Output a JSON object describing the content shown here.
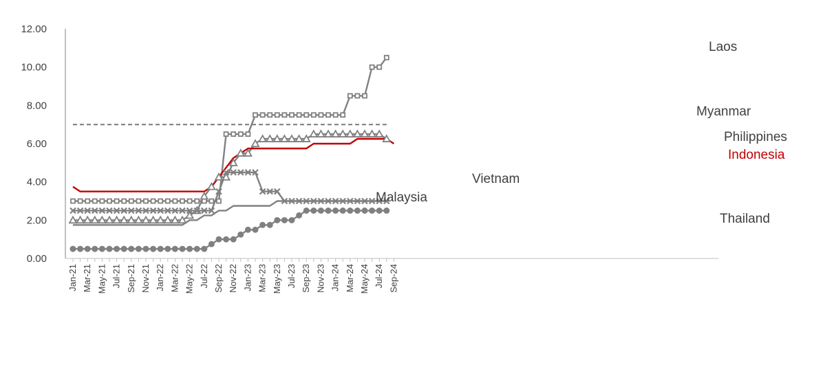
{
  "chart_data": {
    "type": "line",
    "title": "",
    "xlabel": "",
    "ylabel": "",
    "ylim": [
      0,
      12
    ],
    "yticks": [
      "0.00",
      "2.00",
      "4.00",
      "6.00",
      "8.00",
      "10.00",
      "12.00"
    ],
    "x_tick_labels": [
      "Jan-21",
      "Mar-21",
      "May-21",
      "Jul-21",
      "Sep-21",
      "Nov-21",
      "Jan-22",
      "Mar-22",
      "May-22",
      "Jul-22",
      "Sep-22",
      "Nov-22",
      "Jan-23",
      "Mar-23",
      "May-23",
      "Jul-23",
      "Sep-23",
      "Nov-23",
      "Jan-24",
      "Mar-24",
      "May-24",
      "Jul-24",
      "Sep-24"
    ],
    "x": [
      "Jan-21",
      "Feb-21",
      "Mar-21",
      "Apr-21",
      "May-21",
      "Jun-21",
      "Jul-21",
      "Aug-21",
      "Sep-21",
      "Oct-21",
      "Nov-21",
      "Dec-21",
      "Jan-22",
      "Feb-22",
      "Mar-22",
      "Apr-22",
      "May-22",
      "Jun-22",
      "Jul-22",
      "Aug-22",
      "Sep-22",
      "Oct-22",
      "Nov-22",
      "Dec-22",
      "Jan-23",
      "Feb-23",
      "Mar-23",
      "Apr-23",
      "May-23",
      "Jun-23",
      "Jul-23",
      "Aug-23",
      "Sep-23",
      "Oct-23",
      "Nov-23",
      "Dec-23",
      "Jan-24",
      "Feb-24",
      "Mar-24",
      "Apr-24",
      "May-24",
      "Jun-24",
      "Jul-24",
      "Aug-24",
      "Sep-24"
    ],
    "grid": false,
    "legend": "labels next to lines",
    "series": [
      {
        "name": "Laos",
        "color": "#808080",
        "dash": false,
        "marker": "square",
        "values": [
          3.0,
          3.0,
          3.0,
          3.0,
          3.0,
          3.0,
          3.0,
          3.0,
          3.0,
          3.0,
          3.0,
          3.0,
          3.0,
          3.0,
          3.0,
          3.0,
          3.0,
          3.0,
          3.0,
          3.0,
          3.0,
          6.5,
          6.5,
          6.5,
          6.5,
          7.5,
          7.5,
          7.5,
          7.5,
          7.5,
          7.5,
          7.5,
          7.5,
          7.5,
          7.5,
          7.5,
          7.5,
          7.5,
          8.5,
          8.5,
          8.5,
          10.0,
          10.0,
          10.5,
          null
        ]
      },
      {
        "name": "Myanmar",
        "color": "#808080",
        "dash": true,
        "marker": "none",
        "values": [
          7.0,
          7.0,
          7.0,
          7.0,
          7.0,
          7.0,
          7.0,
          7.0,
          7.0,
          7.0,
          7.0,
          7.0,
          7.0,
          7.0,
          7.0,
          7.0,
          7.0,
          7.0,
          7.0,
          7.0,
          7.0,
          7.0,
          7.0,
          7.0,
          7.0,
          7.0,
          7.0,
          7.0,
          7.0,
          7.0,
          7.0,
          7.0,
          7.0,
          7.0,
          7.0,
          7.0,
          7.0,
          7.0,
          7.0,
          7.0,
          7.0,
          7.0,
          7.0,
          7.0,
          null
        ]
      },
      {
        "name": "Philippines",
        "color": "#808080",
        "dash": false,
        "marker": "triangle",
        "values": [
          2.0,
          2.0,
          2.0,
          2.0,
          2.0,
          2.0,
          2.0,
          2.0,
          2.0,
          2.0,
          2.0,
          2.0,
          2.0,
          2.0,
          2.0,
          2.0,
          2.25,
          2.5,
          3.25,
          3.75,
          4.25,
          4.25,
          5.0,
          5.5,
          5.5,
          6.0,
          6.25,
          6.25,
          6.25,
          6.25,
          6.25,
          6.25,
          6.25,
          6.5,
          6.5,
          6.5,
          6.5,
          6.5,
          6.5,
          6.5,
          6.5,
          6.5,
          6.5,
          6.25,
          null
        ]
      },
      {
        "name": "Indonesia",
        "color": "#c00000",
        "dash": false,
        "marker": "none",
        "values": [
          3.75,
          3.5,
          3.5,
          3.5,
          3.5,
          3.5,
          3.5,
          3.5,
          3.5,
          3.5,
          3.5,
          3.5,
          3.5,
          3.5,
          3.5,
          3.5,
          3.5,
          3.5,
          3.5,
          3.75,
          4.25,
          4.75,
          5.25,
          5.5,
          5.75,
          5.75,
          5.75,
          5.75,
          5.75,
          5.75,
          5.75,
          5.75,
          5.75,
          6.0,
          6.0,
          6.0,
          6.0,
          6.0,
          6.0,
          6.25,
          6.25,
          6.25,
          6.25,
          6.25,
          6.0
        ]
      },
      {
        "name": "Vietnam",
        "color": "#808080",
        "dash": false,
        "marker": "x",
        "values": [
          2.5,
          2.5,
          2.5,
          2.5,
          2.5,
          2.5,
          2.5,
          2.5,
          2.5,
          2.5,
          2.5,
          2.5,
          2.5,
          2.5,
          2.5,
          2.5,
          2.5,
          2.5,
          2.5,
          2.5,
          3.5,
          4.5,
          4.5,
          4.5,
          4.5,
          4.5,
          3.5,
          3.5,
          3.5,
          3.0,
          3.0,
          3.0,
          3.0,
          3.0,
          3.0,
          3.0,
          3.0,
          3.0,
          3.0,
          3.0,
          3.0,
          3.0,
          3.0,
          3.0,
          null
        ]
      },
      {
        "name": "Malaysia",
        "color": "#808080",
        "dash": false,
        "marker": "none",
        "values": [
          1.75,
          1.75,
          1.75,
          1.75,
          1.75,
          1.75,
          1.75,
          1.75,
          1.75,
          1.75,
          1.75,
          1.75,
          1.75,
          1.75,
          1.75,
          1.75,
          2.0,
          2.0,
          2.25,
          2.25,
          2.5,
          2.5,
          2.75,
          2.75,
          2.75,
          2.75,
          2.75,
          2.75,
          3.0,
          3.0,
          3.0,
          3.0,
          3.0,
          3.0,
          3.0,
          3.0,
          3.0,
          3.0,
          3.0,
          3.0,
          3.0,
          3.0,
          3.0,
          3.0,
          null
        ]
      },
      {
        "name": "Thailand",
        "color": "#808080",
        "dash": false,
        "marker": "circle",
        "values": [
          0.5,
          0.5,
          0.5,
          0.5,
          0.5,
          0.5,
          0.5,
          0.5,
          0.5,
          0.5,
          0.5,
          0.5,
          0.5,
          0.5,
          0.5,
          0.5,
          0.5,
          0.5,
          0.5,
          0.75,
          1.0,
          1.0,
          1.0,
          1.25,
          1.5,
          1.5,
          1.75,
          1.75,
          2.0,
          2.0,
          2.0,
          2.25,
          2.5,
          2.5,
          2.5,
          2.5,
          2.5,
          2.5,
          2.5,
          2.5,
          2.5,
          2.5,
          2.5,
          2.5,
          null
        ]
      }
    ]
  }
}
